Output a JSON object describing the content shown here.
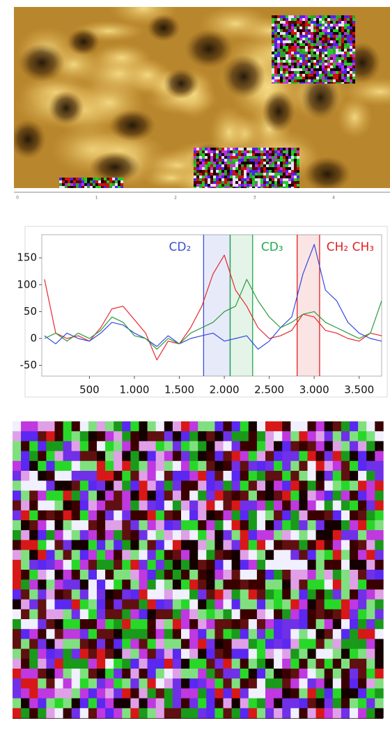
{
  "afm_image": {
    "xtick_labels": [
      "0",
      "1",
      "2",
      "3",
      "4"
    ]
  },
  "chart_data": {
    "type": "line",
    "x": [
      0,
      125,
      250,
      375,
      500,
      625,
      750,
      875,
      1000,
      1125,
      1250,
      1375,
      1500,
      1625,
      1750,
      1875,
      2000,
      2125,
      2250,
      2375,
      2500,
      2625,
      2750,
      2875,
      3000,
      3125,
      3250,
      3375,
      3500,
      3625,
      3750
    ],
    "series": [
      {
        "color": "#e8262a",
        "values": [
          110,
          10,
          0,
          5,
          -5,
          20,
          55,
          60,
          35,
          10,
          -40,
          -5,
          -10,
          20,
          60,
          120,
          155,
          90,
          60,
          20,
          0,
          5,
          15,
          45,
          40,
          15,
          10,
          0,
          -5,
          10,
          5
        ]
      },
      {
        "color": "#3248e0",
        "values": [
          5,
          -10,
          10,
          0,
          -5,
          10,
          30,
          25,
          10,
          0,
          -15,
          5,
          -10,
          0,
          5,
          10,
          -5,
          0,
          5,
          -20,
          -5,
          20,
          40,
          120,
          175,
          90,
          70,
          30,
          10,
          0,
          -5
        ]
      },
      {
        "color": "#2a9a3a",
        "values": [
          0,
          10,
          -5,
          10,
          0,
          15,
          40,
          30,
          5,
          0,
          -20,
          0,
          -10,
          10,
          20,
          30,
          50,
          60,
          110,
          70,
          40,
          20,
          30,
          45,
          50,
          30,
          20,
          10,
          0,
          10,
          70
        ]
      }
    ],
    "regions": [
      {
        "label": "CD₂",
        "range": [
          1770,
          2065
        ],
        "color": "#3a4fd0"
      },
      {
        "label": "CD₃",
        "range": [
          2065,
          2315
        ],
        "color": "#22a84a"
      },
      {
        "label": "CH₂ CH₃",
        "range": [
          2810,
          3060
        ],
        "color": "#e02020"
      }
    ],
    "xlim": [
      -30,
      3750
    ],
    "ylim": [
      -70,
      193
    ],
    "xticks": [
      500,
      {
        "value": 1000,
        "label": "1.000"
      },
      {
        "value": 1500,
        "label": "1.500"
      },
      {
        "value": 2000,
        "label": "2.000"
      },
      {
        "value": 2500,
        "label": "2.500"
      },
      {
        "value": 3000,
        "label": "3.000"
      },
      {
        "value": 3500,
        "label": "3.500"
      }
    ],
    "yticks": [
      -50,
      0,
      50,
      100,
      150
    ]
  }
}
